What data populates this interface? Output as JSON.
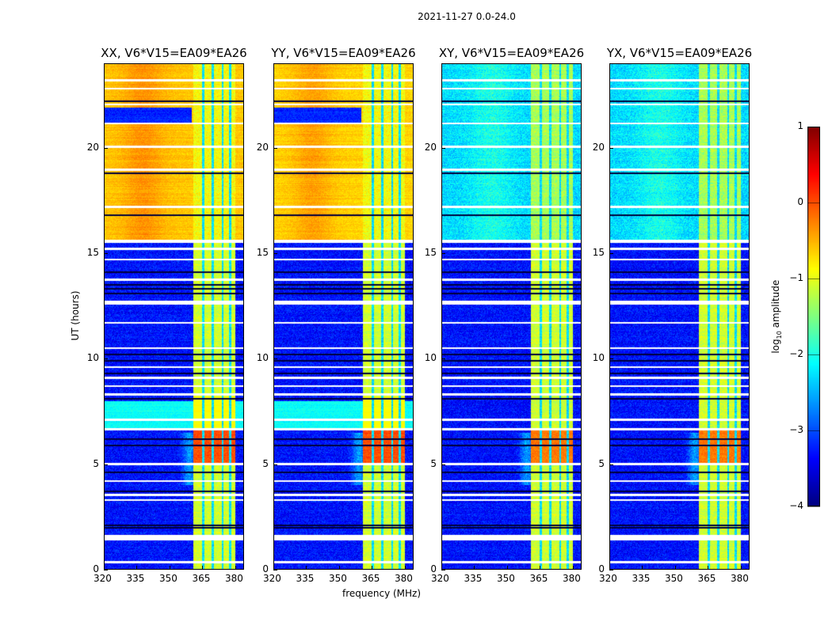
{
  "chart_data": {
    "type": "heatmap",
    "title": "2021-11-27 0.0-24.0",
    "xlabel": "frequency (MHz)",
    "ylabel": "UT (hours)",
    "xlim": [
      320,
      384
    ],
    "ylim": [
      0,
      24
    ],
    "xticks": [
      "320",
      "335",
      "350",
      "365",
      "380"
    ],
    "yticks": [
      "0",
      "5",
      "10",
      "15",
      "20"
    ],
    "panels": [
      {
        "title": "XX, V6*V15=EA09*EA26",
        "pol": "XX",
        "high_top_level": -0.6
      },
      {
        "title": "YY, V6*V15=EA09*EA26",
        "pol": "YY",
        "high_top_level": -0.65
      },
      {
        "title": "XY, V6*V15=EA09*EA26",
        "pol": "XY",
        "high_top_level": -2.2
      },
      {
        "title": "YX, V6*V15=EA09*EA26",
        "pol": "YX",
        "high_top_level": -2.2
      }
    ],
    "rfi_band_mhz": [
      361,
      380
    ],
    "background_level": -3.3,
    "flagged_hours": [
      0.35,
      1.45,
      1.55,
      1.6,
      3.3,
      3.55,
      4.2,
      5.0,
      6.65,
      7.1,
      8.3,
      8.7,
      9.1,
      9.6,
      10.5,
      11.7,
      12.6,
      12.7,
      13.75,
      14.7,
      15.2,
      15.55,
      15.6,
      17.2,
      18.95,
      20.05,
      21.15,
      22.05,
      22.8,
      23.2
    ],
    "colorbar": {
      "label": "log10 amplitude",
      "label_main": "log",
      "label_sub": "10",
      "label_rest": " amplitude",
      "range": [
        -4,
        1
      ],
      "ticks": [
        "1",
        "0",
        "−1",
        "−2",
        "−3",
        "−4"
      ],
      "colormap": "jet"
    }
  }
}
